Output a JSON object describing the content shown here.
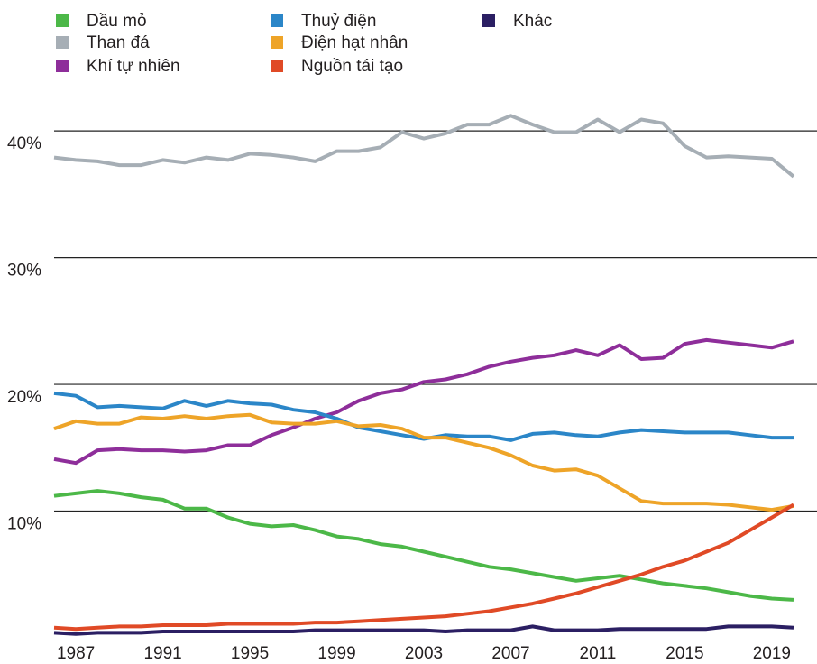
{
  "chart_data": {
    "type": "line",
    "x": [
      1986,
      1987,
      1988,
      1989,
      1990,
      1991,
      1992,
      1993,
      1994,
      1995,
      1996,
      1997,
      1998,
      1999,
      2000,
      2001,
      2002,
      2003,
      2004,
      2005,
      2006,
      2007,
      2008,
      2009,
      2010,
      2011,
      2012,
      2013,
      2014,
      2015,
      2016,
      2017,
      2018,
      2019,
      2020
    ],
    "xlim": [
      1986,
      2020
    ],
    "xticks": [
      1987,
      1991,
      1995,
      1999,
      2003,
      2007,
      2011,
      2015,
      2019
    ],
    "ylim": [
      0,
      43
    ],
    "yticks": [
      {
        "value": 10,
        "label": "10%"
      },
      {
        "value": 20,
        "label": "20%"
      },
      {
        "value": 30,
        "label": "30%"
      },
      {
        "value": 40,
        "label": "40%"
      }
    ],
    "grid": true,
    "series": [
      {
        "name": "Dầu mỏ",
        "color": "#4cb848",
        "values": [
          11.2,
          11.4,
          11.6,
          11.4,
          11.1,
          10.9,
          10.2,
          10.2,
          9.5,
          9.0,
          8.8,
          8.9,
          8.5,
          8.0,
          7.8,
          7.4,
          7.2,
          6.8,
          6.4,
          6.0,
          5.6,
          5.4,
          5.1,
          4.8,
          4.5,
          4.7,
          4.9,
          4.6,
          4.3,
          4.1,
          3.9,
          3.6,
          3.3,
          3.1,
          3.0
        ]
      },
      {
        "name": "Than đá",
        "color": "#a6aeb5",
        "values": [
          37.9,
          37.7,
          37.6,
          37.3,
          37.3,
          37.7,
          37.5,
          37.9,
          37.7,
          38.2,
          38.1,
          37.9,
          37.6,
          38.4,
          38.4,
          38.7,
          39.9,
          39.4,
          39.8,
          40.5,
          40.5,
          41.2,
          40.5,
          39.9,
          39.9,
          40.9,
          39.9,
          40.9,
          40.6,
          38.8,
          37.9,
          38.0,
          37.9,
          37.8,
          36.4
        ]
      },
      {
        "name": "Khí tự nhiên",
        "color": "#8e2e9a",
        "values": [
          14.1,
          13.8,
          14.8,
          14.9,
          14.8,
          14.8,
          14.7,
          14.8,
          15.2,
          15.2,
          16.0,
          16.6,
          17.3,
          17.8,
          18.7,
          19.3,
          19.6,
          20.2,
          20.4,
          20.8,
          21.4,
          21.8,
          22.1,
          22.3,
          22.7,
          22.3,
          23.1,
          22.0,
          22.1,
          23.2,
          23.5,
          23.3,
          23.1,
          22.9,
          23.4
        ]
      },
      {
        "name": "Thuỷ điện",
        "color": "#2b86c8",
        "values": [
          19.3,
          19.1,
          18.2,
          18.3,
          18.2,
          18.1,
          18.7,
          18.3,
          18.7,
          18.5,
          18.4,
          18.0,
          17.8,
          17.3,
          16.6,
          16.3,
          16.0,
          15.7,
          16.0,
          15.9,
          15.9,
          15.6,
          16.1,
          16.2,
          16.0,
          15.9,
          16.2,
          16.4,
          16.3,
          16.2,
          16.2,
          16.2,
          16.0,
          15.8,
          15.8
        ]
      },
      {
        "name": "Điện hạt nhân",
        "color": "#eea428",
        "values": [
          16.5,
          17.1,
          16.9,
          16.9,
          17.4,
          17.3,
          17.5,
          17.3,
          17.5,
          17.6,
          17.0,
          16.9,
          16.9,
          17.1,
          16.7,
          16.8,
          16.5,
          15.8,
          15.8,
          15.4,
          15.0,
          14.4,
          13.6,
          13.2,
          13.3,
          12.8,
          11.8,
          10.8,
          10.6,
          10.6,
          10.6,
          10.5,
          10.3,
          10.1,
          10.4
        ]
      },
      {
        "name": "Nguồn tái tạo",
        "color": "#e04a26",
        "values": [
          0.8,
          0.7,
          0.8,
          0.9,
          0.9,
          1.0,
          1.0,
          1.0,
          1.1,
          1.1,
          1.1,
          1.1,
          1.2,
          1.2,
          1.3,
          1.4,
          1.5,
          1.6,
          1.7,
          1.9,
          2.1,
          2.4,
          2.7,
          3.1,
          3.5,
          4.0,
          4.5,
          5.0,
          5.6,
          6.1,
          6.8,
          7.5,
          8.5,
          9.5,
          10.5
        ]
      },
      {
        "name": "Khác",
        "color": "#2b1f63",
        "values": [
          0.4,
          0.3,
          0.4,
          0.4,
          0.4,
          0.5,
          0.5,
          0.5,
          0.5,
          0.5,
          0.5,
          0.5,
          0.6,
          0.6,
          0.6,
          0.6,
          0.6,
          0.6,
          0.5,
          0.6,
          0.6,
          0.6,
          0.9,
          0.6,
          0.6,
          0.6,
          0.7,
          0.7,
          0.7,
          0.7,
          0.7,
          0.9,
          0.9,
          0.9,
          0.8
        ]
      }
    ]
  }
}
